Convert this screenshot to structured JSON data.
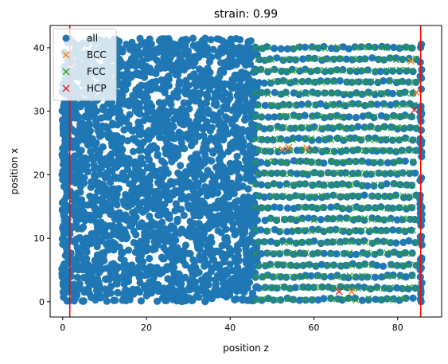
{
  "chart_data": {
    "type": "scatter",
    "title": "strain: 0.99",
    "xlabel": "position z",
    "ylabel": "position x",
    "xlim": [
      -3,
      90.5
    ],
    "ylim": [
      -2.4,
      43.5
    ],
    "xticks": [
      0,
      20,
      40,
      60,
      80
    ],
    "yticks": [
      0,
      10,
      20,
      30,
      40
    ],
    "xtick_labels": [
      "0",
      "20",
      "40",
      "60",
      "80"
    ],
    "ytick_labels": [
      "0",
      "10",
      "20",
      "30",
      "40"
    ],
    "grid": false,
    "legend_position": "top-left",
    "vlines": [
      {
        "x": 1.7,
        "color": "#ff0000"
      },
      {
        "x": 85.5,
        "color": "#ff0000"
      }
    ],
    "series": [
      {
        "name": "all",
        "marker": "o",
        "color": "#1f77b4",
        "region": {
          "z": [
            0,
            85.5
          ],
          "x": [
            0,
            41.5
          ]
        },
        "approx_points": "~5000 atoms densely filling region"
      },
      {
        "name": "BCC",
        "marker": "x",
        "color": "#ff7f0e",
        "points": [
          [
            52.5,
            24.0
          ],
          [
            54.0,
            24.3
          ],
          [
            58.3,
            24.2
          ],
          [
            69.0,
            1.6
          ],
          [
            83.2,
            37.9
          ],
          [
            84.5,
            33.0
          ]
        ]
      },
      {
        "name": "FCC",
        "marker": "x",
        "color": "#2ca02c",
        "region": {
          "z": [
            45.5,
            85.0
          ],
          "x": [
            0,
            41.0
          ]
        },
        "row_spacing": 1.8,
        "column_spacing": 1.5
      },
      {
        "name": "HCP",
        "marker": "x",
        "color": "#d62728",
        "points": [
          [
            66.0,
            1.6
          ],
          [
            84.0,
            30.2
          ]
        ]
      }
    ]
  }
}
